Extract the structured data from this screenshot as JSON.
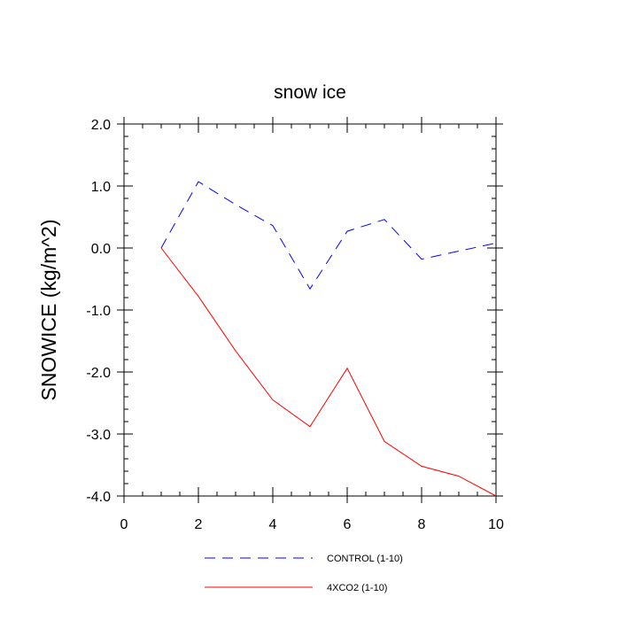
{
  "chart_data": {
    "type": "line",
    "title": "snow ice",
    "xlabel": "",
    "ylabel": "SNOWICE  (kg/m^2)",
    "xlim": [
      0,
      10
    ],
    "ylim": [
      -4.0,
      2.0
    ],
    "xticks": [
      0,
      2,
      4,
      6,
      8,
      10
    ],
    "xtick_labels": [
      "0",
      "2",
      "4",
      "6",
      "8",
      "10"
    ],
    "yticks": [
      -4.0,
      -3.0,
      -2.0,
      -1.0,
      0.0,
      1.0,
      2.0
    ],
    "ytick_labels": [
      "-4.0",
      "-3.0",
      "-2.0",
      "-1.0",
      "0.0",
      "1.0",
      "2.0"
    ],
    "grid": false,
    "legend_position": "bottom",
    "series": [
      {
        "name": "CONTROL (1-10)",
        "color": "#0000ff",
        "style": "dashed",
        "x": [
          1,
          2,
          3,
          4,
          5,
          6,
          7,
          8,
          9,
          10
        ],
        "y": [
          0.0,
          1.07,
          0.7,
          0.36,
          -0.66,
          0.27,
          0.46,
          -0.18,
          -0.05,
          0.08
        ]
      },
      {
        "name": "4XCO2 (1-10)",
        "color": "#ff0000",
        "style": "solid",
        "x": [
          1,
          2,
          3,
          4,
          5,
          6,
          7,
          8,
          9,
          10
        ],
        "y": [
          0.0,
          -0.78,
          -1.66,
          -2.45,
          -2.88,
          -1.94,
          -3.12,
          -3.52,
          -3.68,
          -4.0
        ]
      }
    ]
  }
}
